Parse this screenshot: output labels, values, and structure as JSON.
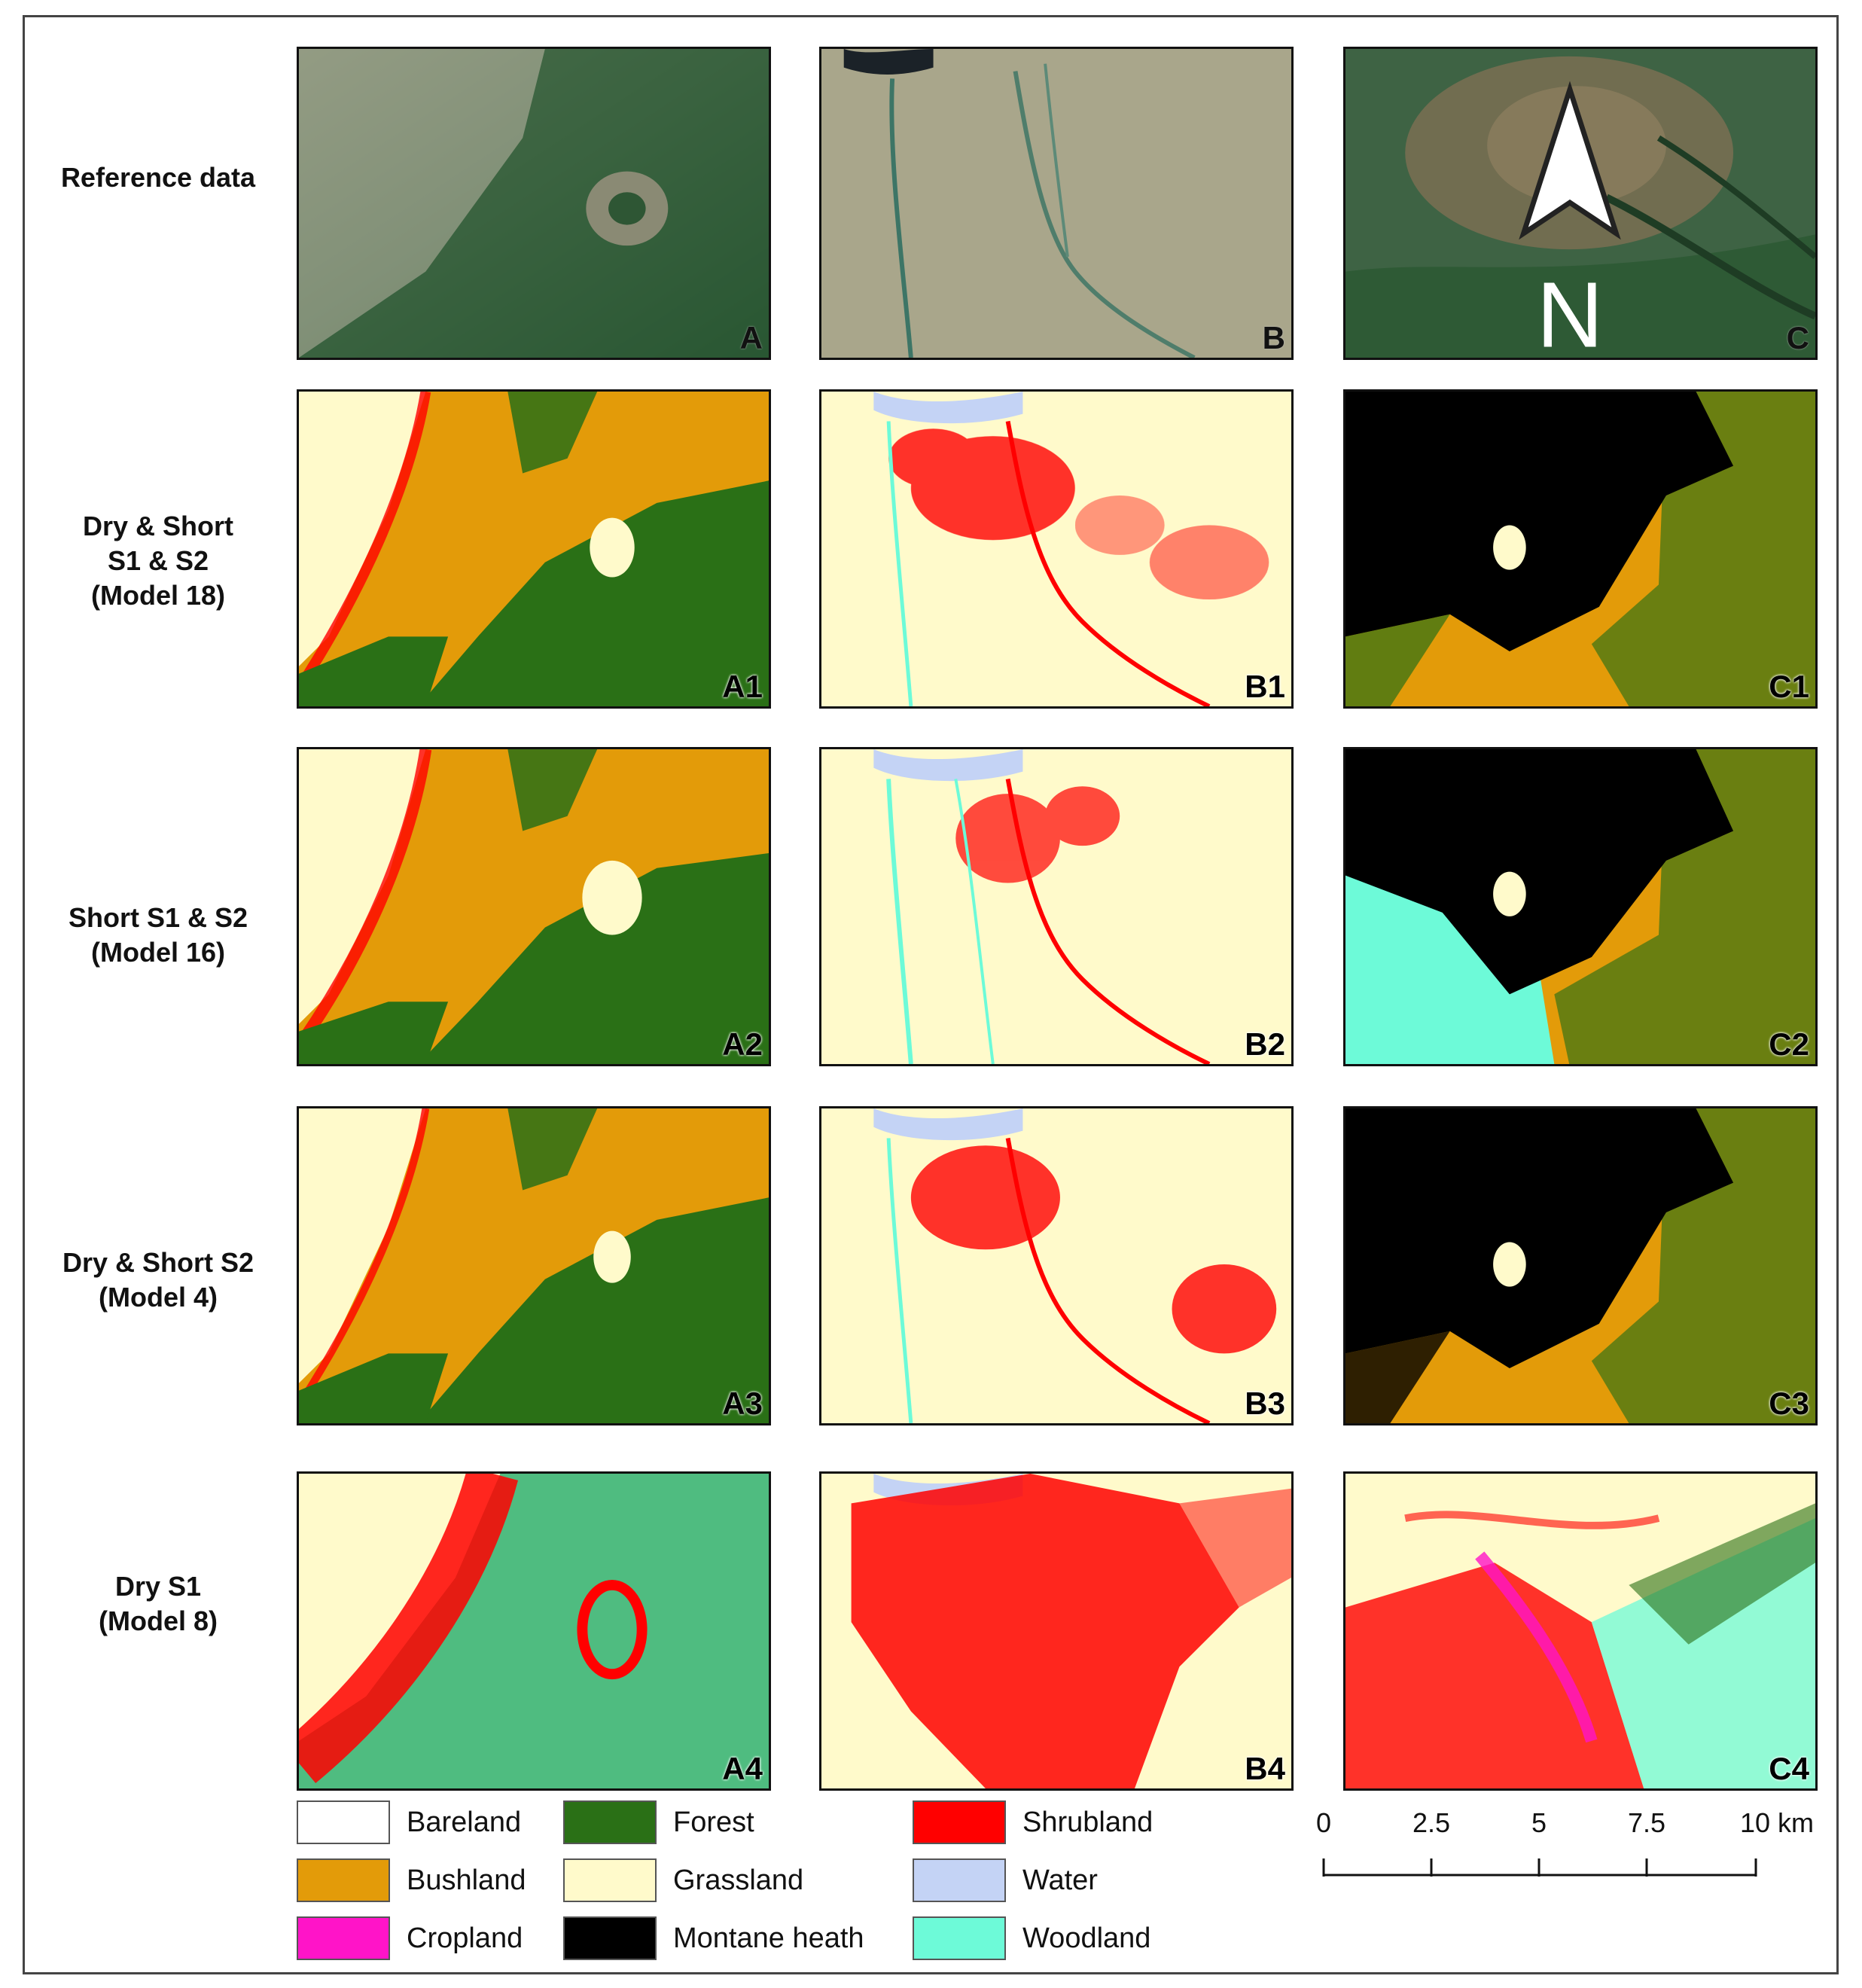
{
  "rows": [
    {
      "label": "Reference data"
    },
    {
      "label": "Dry & Short\nS1 & S2\n(Model 18)"
    },
    {
      "label": "Short S1 & S2\n(Model 16)"
    },
    {
      "label": "Dry & Short S2\n(Model 4)"
    },
    {
      "label": "Dry S1\n(Model 8)"
    }
  ],
  "panels": [
    [
      "A",
      "B",
      "C"
    ],
    [
      "A1",
      "B1",
      "C1"
    ],
    [
      "A2",
      "B2",
      "C2"
    ],
    [
      "A3",
      "B3",
      "C3"
    ],
    [
      "A4",
      "B4",
      "C4"
    ]
  ],
  "north_label": "N",
  "legend": [
    {
      "name": "Bareland",
      "color": "#ffffff"
    },
    {
      "name": "Forest",
      "color": "#2a7016"
    },
    {
      "name": "Shrubland",
      "color": "#ff0000"
    },
    {
      "name": "Bushland",
      "color": "#e39b09"
    },
    {
      "name": "Grassland",
      "color": "#fffacb"
    },
    {
      "name": "Water",
      "color": "#c4d3f5"
    },
    {
      "name": "Cropland",
      "color": "#ff14c8"
    },
    {
      "name": "Montane heath",
      "color": "#000000"
    },
    {
      "name": "Woodland",
      "color": "#6dfad8"
    }
  ],
  "scale_bar": {
    "ticks": [
      "0",
      "2.5",
      "5",
      "7.5",
      "10 km"
    ]
  }
}
